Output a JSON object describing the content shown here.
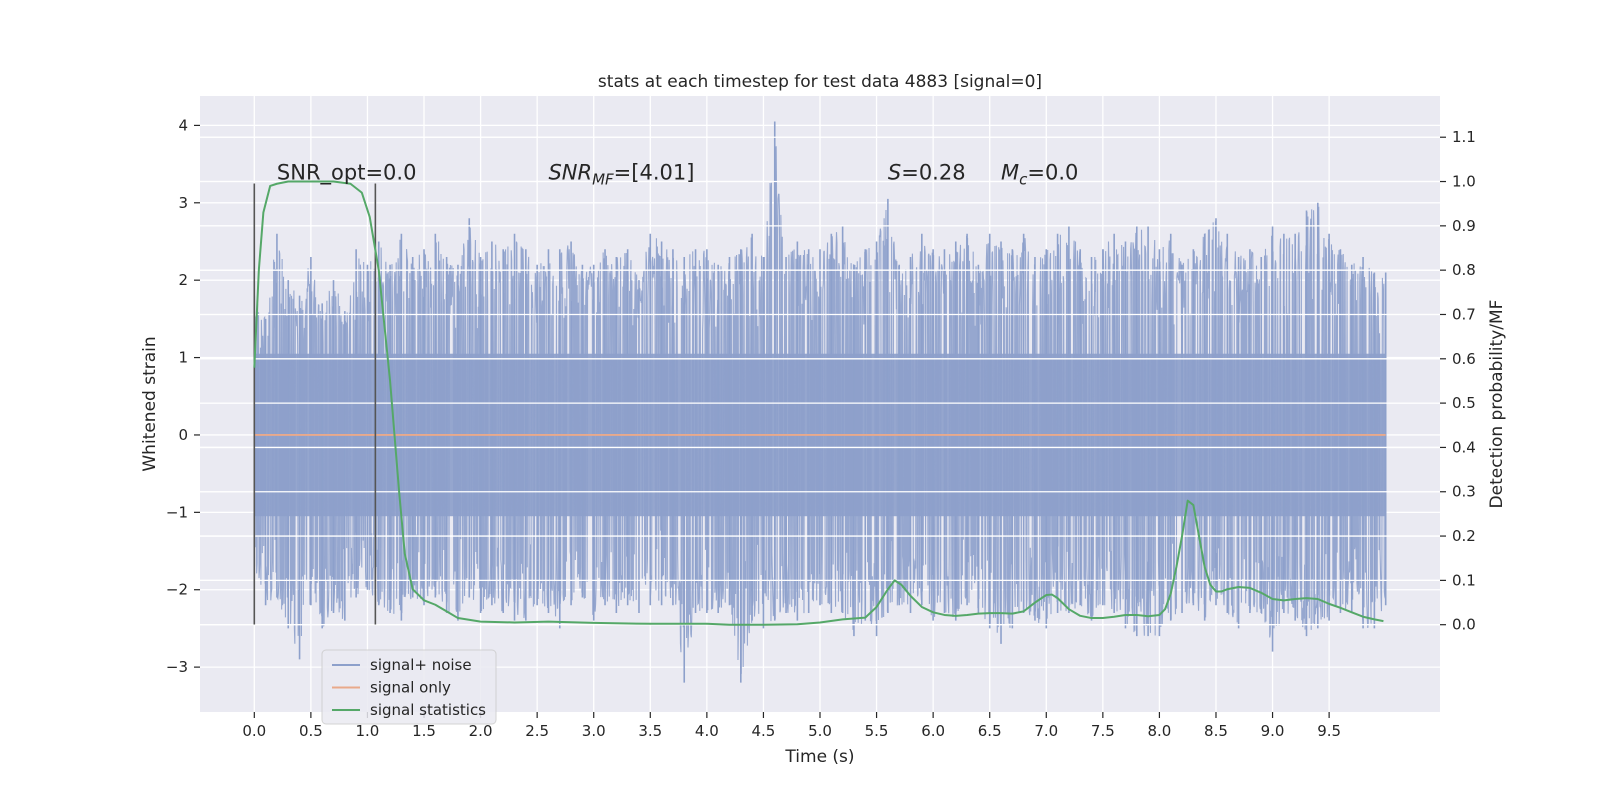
{
  "chart_data": {
    "type": "line",
    "title": "stats at each timestep for test data 4883 [signal=0]",
    "xlabel": "Time (s)",
    "ylabel": "Whitened strain",
    "y2label": "Detection probability/MF",
    "xlim": [
      -0.48,
      10.48
    ],
    "ylim": [
      -3.58,
      4.38
    ],
    "y2lim": [
      -0.197,
      1.193
    ],
    "x_ticks": [
      0.0,
      0.5,
      1.0,
      1.5,
      2.0,
      2.5,
      3.0,
      3.5,
      4.0,
      4.5,
      5.0,
      5.5,
      6.0,
      6.5,
      7.0,
      7.5,
      8.0,
      8.5,
      9.0,
      9.5
    ],
    "x_tick_labels": [
      "0.0",
      "0.5",
      "1.0",
      "1.5",
      "2.0",
      "2.5",
      "3.0",
      "3.5",
      "4.0",
      "4.5",
      "5.0",
      "5.5",
      "6.0",
      "6.5",
      "7.0",
      "7.5",
      "8.0",
      "8.5",
      "9.0",
      "9.5"
    ],
    "y_ticks": [
      -3,
      -2,
      -1,
      0,
      1,
      2,
      3,
      4
    ],
    "y_tick_labels": [
      "−3",
      "−2",
      "−1",
      "0",
      "1",
      "2",
      "3",
      "4"
    ],
    "y2_ticks": [
      0.0,
      0.1,
      0.2,
      0.3,
      0.4,
      0.5,
      0.6,
      0.7,
      0.8,
      0.9,
      1.0,
      1.1
    ],
    "y2_tick_labels": [
      "0.0",
      "0.1",
      "0.2",
      "0.3",
      "0.4",
      "0.5",
      "0.6",
      "0.7",
      "0.8",
      "0.9",
      "1.0",
      "1.1"
    ],
    "grid": true,
    "legend_position": "lower-left",
    "series": [
      {
        "name": "signal+ noise",
        "axis": "left",
        "color": "#8da0cb",
        "x_range": [
          0.0,
          10.0
        ],
        "envelope_upper": [
          1.8,
          1.5,
          2.6,
          2.0,
          1.8,
          2.3,
          1.7,
          2.0,
          1.6,
          2.4,
          2.2,
          2.5,
          2.2,
          2.6,
          2.3,
          2.4,
          2.6,
          2.3,
          2.2,
          2.8,
          2.3,
          2.5,
          2.4,
          2.6,
          2.4,
          2.2,
          2.4,
          2.4,
          2.5,
          2.2,
          2.2,
          2.4,
          2.3,
          2.4,
          2.0,
          2.6,
          2.5,
          2.4,
          2.3,
          2.4,
          2.4,
          2.2,
          2.3,
          2.4,
          2.6,
          2.3,
          4.05,
          2.3,
          2.5,
          2.4,
          2.4,
          2.6,
          2.7,
          2.2,
          2.4,
          2.5,
          3.05,
          2.2,
          2.3,
          2.6,
          2.4,
          2.4,
          2.5,
          2.6,
          2.2,
          2.6,
          2.5,
          2.4,
          2.6,
          2.3,
          2.4,
          2.6,
          2.7,
          2.4,
          2.3,
          2.4,
          2.6,
          2.5,
          2.7,
          2.7,
          2.4,
          2.6,
          2.2,
          2.4,
          2.6,
          2.8,
          2.6,
          2.3,
          2.4,
          2.3,
          2.7,
          2.6,
          2.6,
          2.9,
          3.0,
          2.6,
          2.4,
          2.2,
          2.3,
          2.1,
          2.1
        ],
        "envelope_lower": [
          -1.7,
          -2.2,
          -2.1,
          -2.5,
          -2.9,
          -2.2,
          -2.5,
          -2.3,
          -2.4,
          -2.1,
          -2.0,
          -2.2,
          -2.3,
          -2.4,
          -2.1,
          -2.2,
          -2.1,
          -2.3,
          -2.4,
          -2.1,
          -2.3,
          -2.2,
          -2.3,
          -2.4,
          -2.4,
          -2.2,
          -2.3,
          -2.5,
          -2.2,
          -2.1,
          -2.4,
          -2.2,
          -2.3,
          -2.2,
          -2.3,
          -2.2,
          -2.2,
          -2.2,
          -3.2,
          -2.3,
          -2.3,
          -2.3,
          -2.2,
          -3.2,
          -2.4,
          -2.5,
          -2.4,
          -2.3,
          -2.4,
          -2.3,
          -2.2,
          -2.3,
          -2.3,
          -2.6,
          -2.4,
          -2.6,
          -2.3,
          -2.2,
          -2.3,
          -2.2,
          -2.4,
          -2.3,
          -2.4,
          -2.2,
          -2.3,
          -2.5,
          -2.7,
          -2.5,
          -2.3,
          -2.4,
          -2.5,
          -2.3,
          -2.3,
          -2.2,
          -2.4,
          -2.2,
          -2.3,
          -2.5,
          -2.6,
          -2.6,
          -2.6,
          -2.4,
          -2.3,
          -2.2,
          -2.4,
          -2.2,
          -2.3,
          -2.5,
          -2.3,
          -2.3,
          -2.8,
          -2.3,
          -2.4,
          -2.6,
          -2.5,
          -2.4,
          -2.3,
          -2.3,
          -2.5,
          -2.5,
          -2.2
        ]
      },
      {
        "name": "signal only",
        "axis": "left",
        "color": "#e9a98b",
        "x": [
          0.0,
          10.0
        ],
        "y": [
          0.0,
          0.0
        ]
      },
      {
        "name": "signal statistics",
        "axis": "right",
        "color": "#55a868",
        "x": [
          0.0,
          0.04,
          0.08,
          0.14,
          0.2,
          0.3,
          0.5,
          0.7,
          0.85,
          0.95,
          1.02,
          1.1,
          1.2,
          1.28,
          1.33,
          1.4,
          1.5,
          1.6,
          1.7,
          1.8,
          2.0,
          2.3,
          2.6,
          3.0,
          3.5,
          4.0,
          4.2,
          4.5,
          4.8,
          5.0,
          5.2,
          5.4,
          5.5,
          5.6,
          5.66,
          5.72,
          5.8,
          5.9,
          6.0,
          6.1,
          6.2,
          6.3,
          6.4,
          6.5,
          6.6,
          6.7,
          6.8,
          6.9,
          7.0,
          7.05,
          7.1,
          7.2,
          7.3,
          7.4,
          7.5,
          7.6,
          7.7,
          7.8,
          7.9,
          8.0,
          8.05,
          8.1,
          8.15,
          8.2,
          8.25,
          8.3,
          8.35,
          8.4,
          8.45,
          8.5,
          8.55,
          8.6,
          8.7,
          8.8,
          8.9,
          9.0,
          9.1,
          9.2,
          9.3,
          9.4,
          9.5,
          9.6,
          9.7,
          9.8,
          9.9,
          9.98
        ],
        "y": [
          0.58,
          0.8,
          0.93,
          0.99,
          0.995,
          1.0,
          1.0,
          1.0,
          0.995,
          0.975,
          0.92,
          0.8,
          0.55,
          0.3,
          0.16,
          0.08,
          0.055,
          0.045,
          0.03,
          0.015,
          0.007,
          0.005,
          0.007,
          0.004,
          0.002,
          0.002,
          0.0,
          0.0,
          0.001,
          0.005,
          0.012,
          0.016,
          0.04,
          0.08,
          0.1,
          0.09,
          0.065,
          0.04,
          0.028,
          0.022,
          0.02,
          0.022,
          0.025,
          0.026,
          0.026,
          0.025,
          0.03,
          0.05,
          0.067,
          0.068,
          0.06,
          0.035,
          0.02,
          0.015,
          0.015,
          0.018,
          0.022,
          0.022,
          0.019,
          0.022,
          0.035,
          0.07,
          0.13,
          0.2,
          0.28,
          0.27,
          0.2,
          0.13,
          0.09,
          0.075,
          0.075,
          0.08,
          0.085,
          0.083,
          0.072,
          0.058,
          0.055,
          0.058,
          0.06,
          0.058,
          0.047,
          0.038,
          0.028,
          0.018,
          0.012,
          0.008
        ]
      }
    ],
    "vertical_lines": [
      {
        "x": 0.0,
        "ymin": -2.45,
        "ymax": 3.25,
        "color": "#555555"
      },
      {
        "x": 1.07,
        "ymin": -2.45,
        "ymax": 3.25,
        "color": "#555555"
      }
    ],
    "annotations": [
      {
        "text": "SNR_opt=0.0",
        "x": 0.2,
        "y": 3.3,
        "style": "normal"
      },
      {
        "text_main": "SNR",
        "text_sub": "MF",
        "text_tail": "=[4.01]",
        "x": 2.6,
        "y": 3.3,
        "style": "italic-main"
      },
      {
        "text_main": "S",
        "text_tail": "=0.28",
        "x": 5.6,
        "y": 3.3,
        "style": "italic-main"
      },
      {
        "text_main": "M",
        "text_sub": "c",
        "text_tail": "=0.0",
        "x": 6.6,
        "y": 3.3,
        "style": "italic-main"
      }
    ],
    "colors": {
      "plot_background": "#eaeaf2",
      "grid": "#ffffff",
      "figure_background": "#ffffff",
      "legend_background": "#eaeaf2",
      "legend_border": "#cccccc"
    }
  }
}
